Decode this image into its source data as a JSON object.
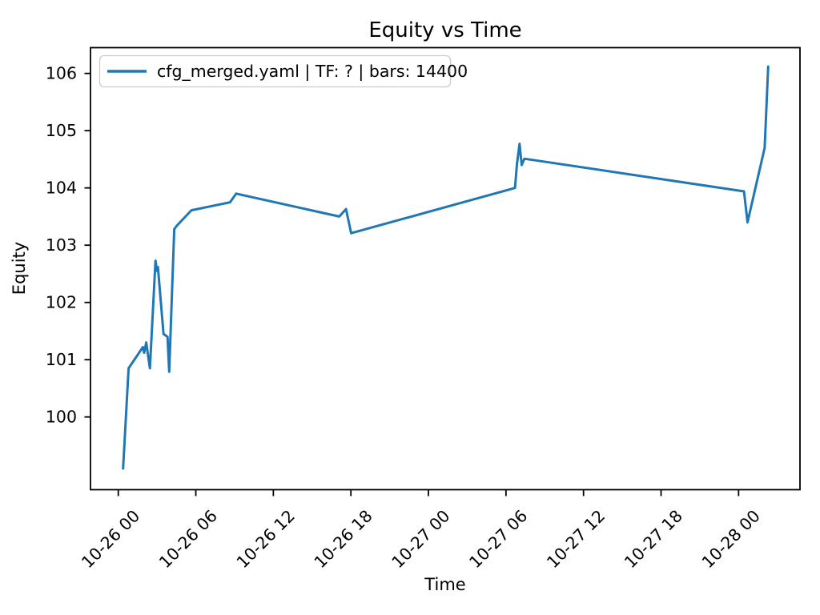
{
  "chart_data": {
    "type": "line",
    "title": "Equity vs Time",
    "xlabel": "Time",
    "ylabel": "Equity",
    "grid": false,
    "legend_position": "upper left",
    "background": "#ffffff",
    "axis_color": "#000000",
    "series": [
      {
        "name": "cfg_merged.yaml | TF: ? | bars: 14400",
        "color": "#1f77b4",
        "points_hours_equity": [
          [
            0.37,
            99.1
          ],
          [
            0.8,
            100.85
          ],
          [
            1.9,
            101.22
          ],
          [
            2.0,
            101.12
          ],
          [
            2.16,
            101.3
          ],
          [
            2.45,
            100.85
          ],
          [
            2.88,
            102.73
          ],
          [
            2.99,
            102.55
          ],
          [
            3.07,
            102.62
          ],
          [
            3.5,
            101.45
          ],
          [
            3.81,
            101.4
          ],
          [
            3.94,
            100.79
          ],
          [
            4.33,
            103.28
          ],
          [
            4.53,
            103.34
          ],
          [
            5.66,
            103.61
          ],
          [
            8.65,
            103.75
          ],
          [
            9.12,
            103.9
          ],
          [
            17.1,
            103.5
          ],
          [
            17.62,
            103.63
          ],
          [
            18.02,
            103.21
          ],
          [
            30.7,
            104.0
          ],
          [
            30.85,
            104.42
          ],
          [
            31.05,
            104.77
          ],
          [
            31.22,
            104.4
          ],
          [
            31.42,
            104.51
          ],
          [
            48.42,
            103.94
          ],
          [
            48.69,
            103.4
          ],
          [
            50.02,
            104.7
          ],
          [
            50.29,
            106.12
          ]
        ]
      }
    ],
    "x_ticks": [
      {
        "label": "10-26 00",
        "hour": 0
      },
      {
        "label": "10-26 06",
        "hour": 6
      },
      {
        "label": "10-26 12",
        "hour": 12
      },
      {
        "label": "10-26 18",
        "hour": 18
      },
      {
        "label": "10-27 00",
        "hour": 24
      },
      {
        "label": "10-27 06",
        "hour": 30
      },
      {
        "label": "10-27 12",
        "hour": 36
      },
      {
        "label": "10-27 18",
        "hour": 42
      },
      {
        "label": "10-28 00",
        "hour": 48
      }
    ],
    "y_ticks": [
      100,
      101,
      102,
      103,
      104,
      105,
      106
    ],
    "xlim_hours": [
      -2.15,
      52.75
    ],
    "ylim": [
      98.73,
      106.45
    ]
  }
}
